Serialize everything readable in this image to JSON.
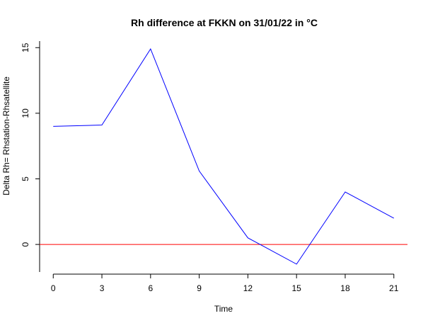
{
  "chart_data": {
    "type": "line",
    "title": "Rh difference at FKKN on 31/01/22 in °C",
    "xlabel": "Time",
    "ylabel": "Delta Rh= Rhstation-Rhsatellite",
    "x": [
      0,
      3,
      6,
      9,
      12,
      15,
      18,
      21
    ],
    "series": [
      {
        "values": [
          9.0,
          9.1,
          14.9,
          5.6,
          0.5,
          -1.5,
          4.0,
          2.0
        ],
        "color": "#0000ff"
      }
    ],
    "reference_lines": [
      {
        "y": 0,
        "color": "#ff0000"
      }
    ],
    "xlim": [
      -0.84,
      21.84
    ],
    "ylim": [
      -2.1,
      15.5
    ],
    "x_ticks": [
      0,
      3,
      6,
      9,
      12,
      15,
      18,
      21
    ],
    "x_tick_labels": [
      "0",
      "3",
      "6",
      "9",
      "12",
      "15",
      "18",
      "21"
    ],
    "y_ticks": [
      0,
      5,
      10,
      15
    ],
    "y_tick_labels": [
      "0",
      "5",
      "10",
      "15"
    ],
    "grid": false,
    "legend": "none"
  }
}
